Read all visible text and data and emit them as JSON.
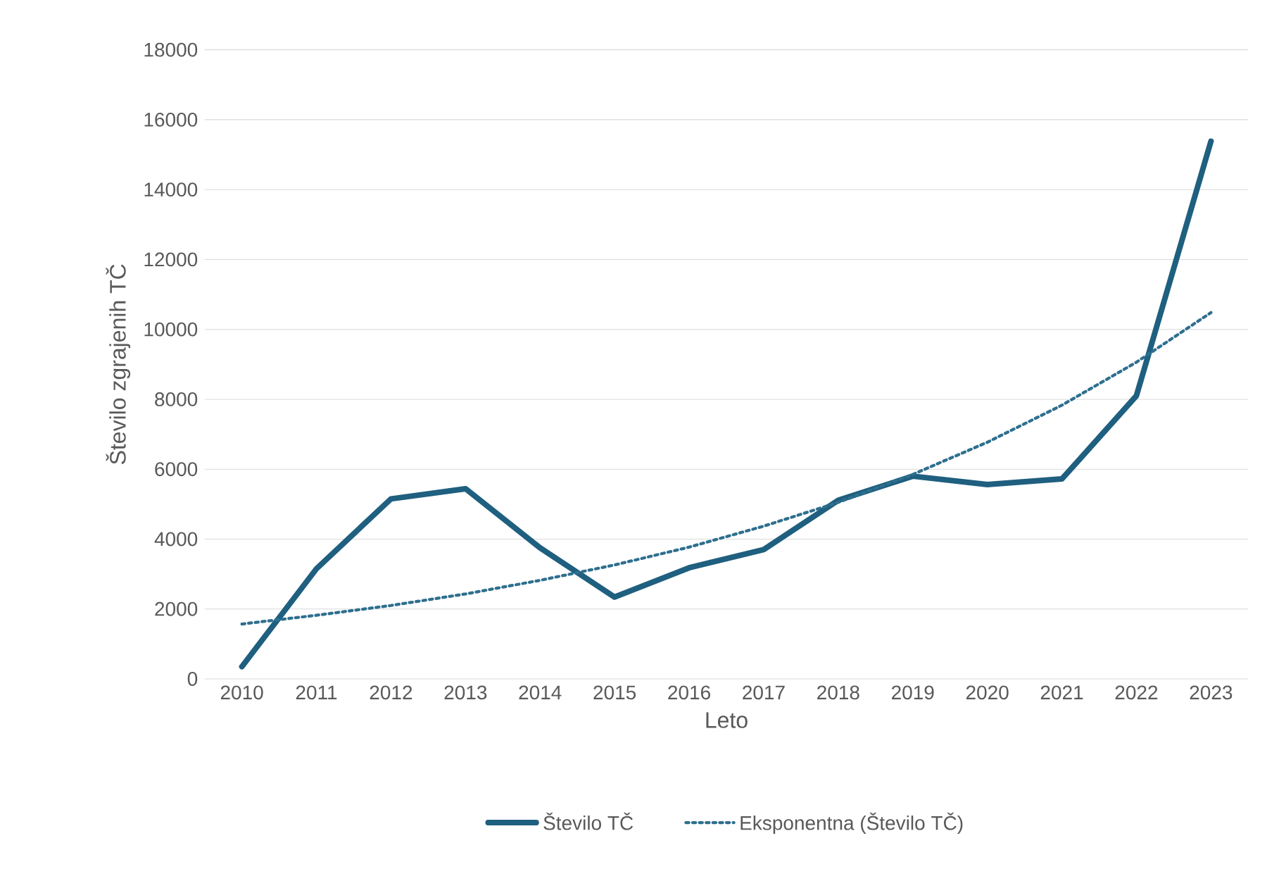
{
  "chart_data": {
    "type": "line",
    "xlabel": "Leto",
    "ylabel": "Število zgrajenih TČ",
    "categories": [
      "2010",
      "2011",
      "2012",
      "2013",
      "2014",
      "2015",
      "2016",
      "2017",
      "2018",
      "2019",
      "2020",
      "2021",
      "2022",
      "2023"
    ],
    "series": [
      {
        "name": "Število TČ",
        "color": "#1f5f7f",
        "line_style": "solid",
        "values": [
          350,
          3150,
          5150,
          5440,
          3750,
          2340,
          3180,
          3700,
          5110,
          5800,
          5560,
          5720,
          8100,
          15380
        ]
      },
      {
        "name": "Eksponentna (Število TČ)",
        "color": "#2e6f8e",
        "line_style": "dotted",
        "values": [
          1570,
          1820,
          2100,
          2430,
          2820,
          3260,
          3770,
          4370,
          5050,
          5850,
          6770,
          7830,
          9060,
          10480
        ]
      }
    ],
    "ylim": [
      0,
      18000
    ],
    "yticks": [
      0,
      2000,
      4000,
      6000,
      8000,
      10000,
      12000,
      14000,
      16000,
      18000
    ],
    "grid": "y",
    "legend": "bottom"
  }
}
